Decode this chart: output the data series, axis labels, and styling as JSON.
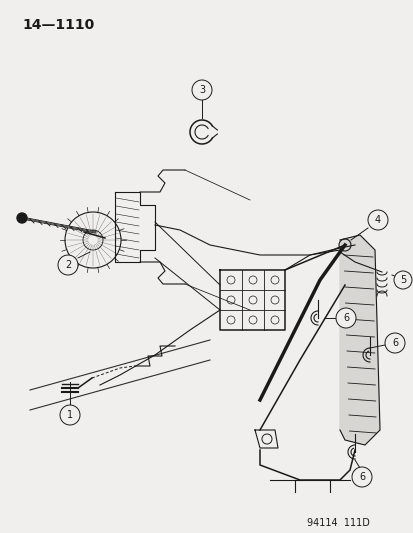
{
  "title": "14—1110",
  "footer": "94114  111D",
  "bg_color": "#f0efed",
  "line_color": "#1a1a1a",
  "title_fontsize": 10,
  "footer_fontsize": 7,
  "fig_width": 4.14,
  "fig_height": 5.33,
  "dpi": 100
}
